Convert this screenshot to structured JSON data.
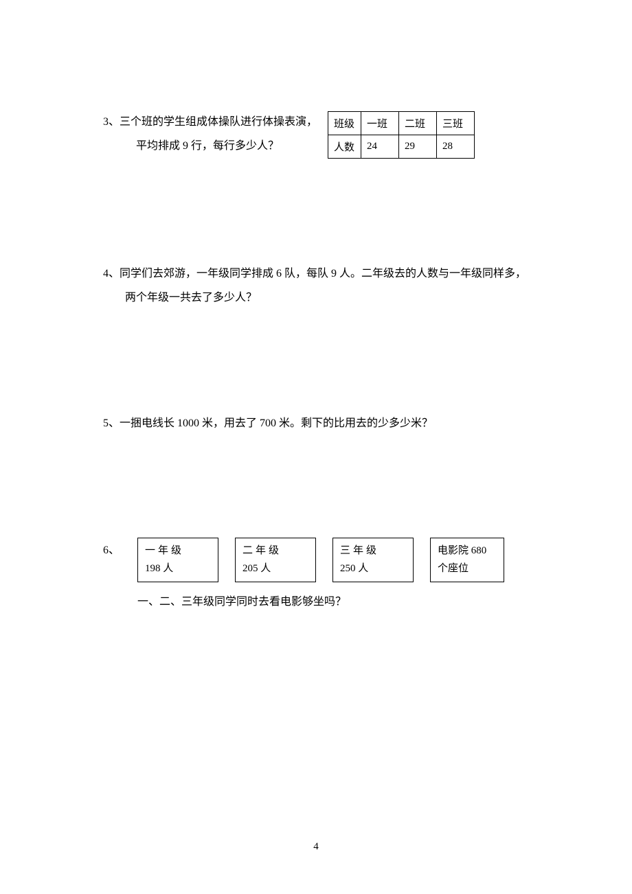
{
  "q3": {
    "number": "3、",
    "line1": "三个班的学生组成体操队进行体操表演，",
    "line2": "平均排成 9 行，每行多少人？",
    "table": {
      "header_label": "班级",
      "col1": "一班",
      "col2": "二班",
      "col3": "三班",
      "row_label": "人数",
      "val1": "24",
      "val2": "29",
      "val3": "28"
    }
  },
  "q4": {
    "number": "4、",
    "line1": "同学们去郊游，一年级同学排成 6 队，每队 9 人。二年级去的人数与一年级同样多，",
    "line2": "两个年级一共去了多少人？"
  },
  "q5": {
    "number": "5、",
    "text": "一捆电线长 1000 米，用去了 700 米。剩下的比用去的少多少米？"
  },
  "q6": {
    "number": "6、",
    "box1_line1": "一年级",
    "box1_line2": "198 人",
    "box2_line1": "二年级",
    "box2_line2": "205 人",
    "box3_line1": "三年级",
    "box3_line2": "250 人",
    "box4_line1": "电影院 680",
    "box4_line2": "个座位",
    "question": "一、二、三年级同学同时去看电影够坐吗？"
  },
  "page_number": "4"
}
